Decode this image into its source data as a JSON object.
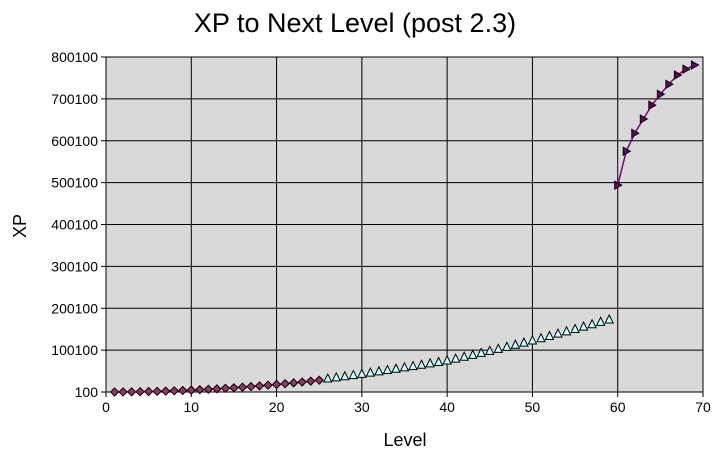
{
  "chart_data": {
    "type": "scatter",
    "title": "XP to Next Level (post 2.3)",
    "xlabel": "Level",
    "ylabel": "XP",
    "xlim": [
      0,
      70
    ],
    "ylim": [
      100,
      800100
    ],
    "x_ticks": [
      "0",
      "10",
      "20",
      "30",
      "40",
      "50",
      "60",
      "70"
    ],
    "y_ticks": [
      "100",
      "100100",
      "200100",
      "300100",
      "400100",
      "500100",
      "600100",
      "700100",
      "800100"
    ],
    "grid": true,
    "plot_background": "#D9D9D9",
    "series": [
      {
        "marker": "diamond",
        "color": "#993366",
        "line_color": "#993366",
        "x": [
          1,
          2,
          3,
          4,
          5,
          6,
          7,
          8,
          9,
          10,
          11,
          12,
          13,
          14,
          15,
          16,
          17,
          18,
          19,
          20,
          21,
          22,
          23,
          24,
          25
        ],
        "y": [
          145,
          280,
          505,
          820,
          1225,
          1720,
          2305,
          2980,
          3745,
          4600,
          5545,
          6580,
          7705,
          8920,
          10225,
          11620,
          13105,
          14680,
          16345,
          18100,
          19945,
          21880,
          23905,
          26020,
          28225
        ]
      },
      {
        "marker": "triangle-up",
        "color": "#CCFFFF",
        "line_color": "#CCFFFF",
        "x": [
          26,
          27,
          28,
          29,
          30,
          31,
          32,
          33,
          34,
          35,
          36,
          37,
          38,
          39,
          40,
          41,
          42,
          43,
          44,
          45,
          46,
          47,
          48,
          49,
          50,
          51,
          52,
          53,
          54,
          55,
          56,
          57,
          58,
          59
        ],
        "y": [
          31000,
          33700,
          36500,
          39300,
          42200,
          45200,
          48200,
          51300,
          54400,
          57600,
          60800,
          64000,
          67300,
          70600,
          74000,
          78500,
          83000,
          87600,
          92300,
          97000,
          101800,
          106700,
          111700,
          116800,
          122000,
          127300,
          132700,
          138200,
          143800,
          149400,
          155000,
          160600,
          166300,
          172000
        ]
      },
      {
        "marker": "triangle-right",
        "color": "#660066",
        "line_color": "#800080",
        "x": [
          60,
          61,
          62,
          63,
          64,
          65,
          66,
          67,
          68,
          69
        ],
        "y": [
          494000,
          575000,
          618000,
          652000,
          685000,
          711000,
          735000,
          757000,
          771000,
          781000
        ]
      }
    ]
  }
}
